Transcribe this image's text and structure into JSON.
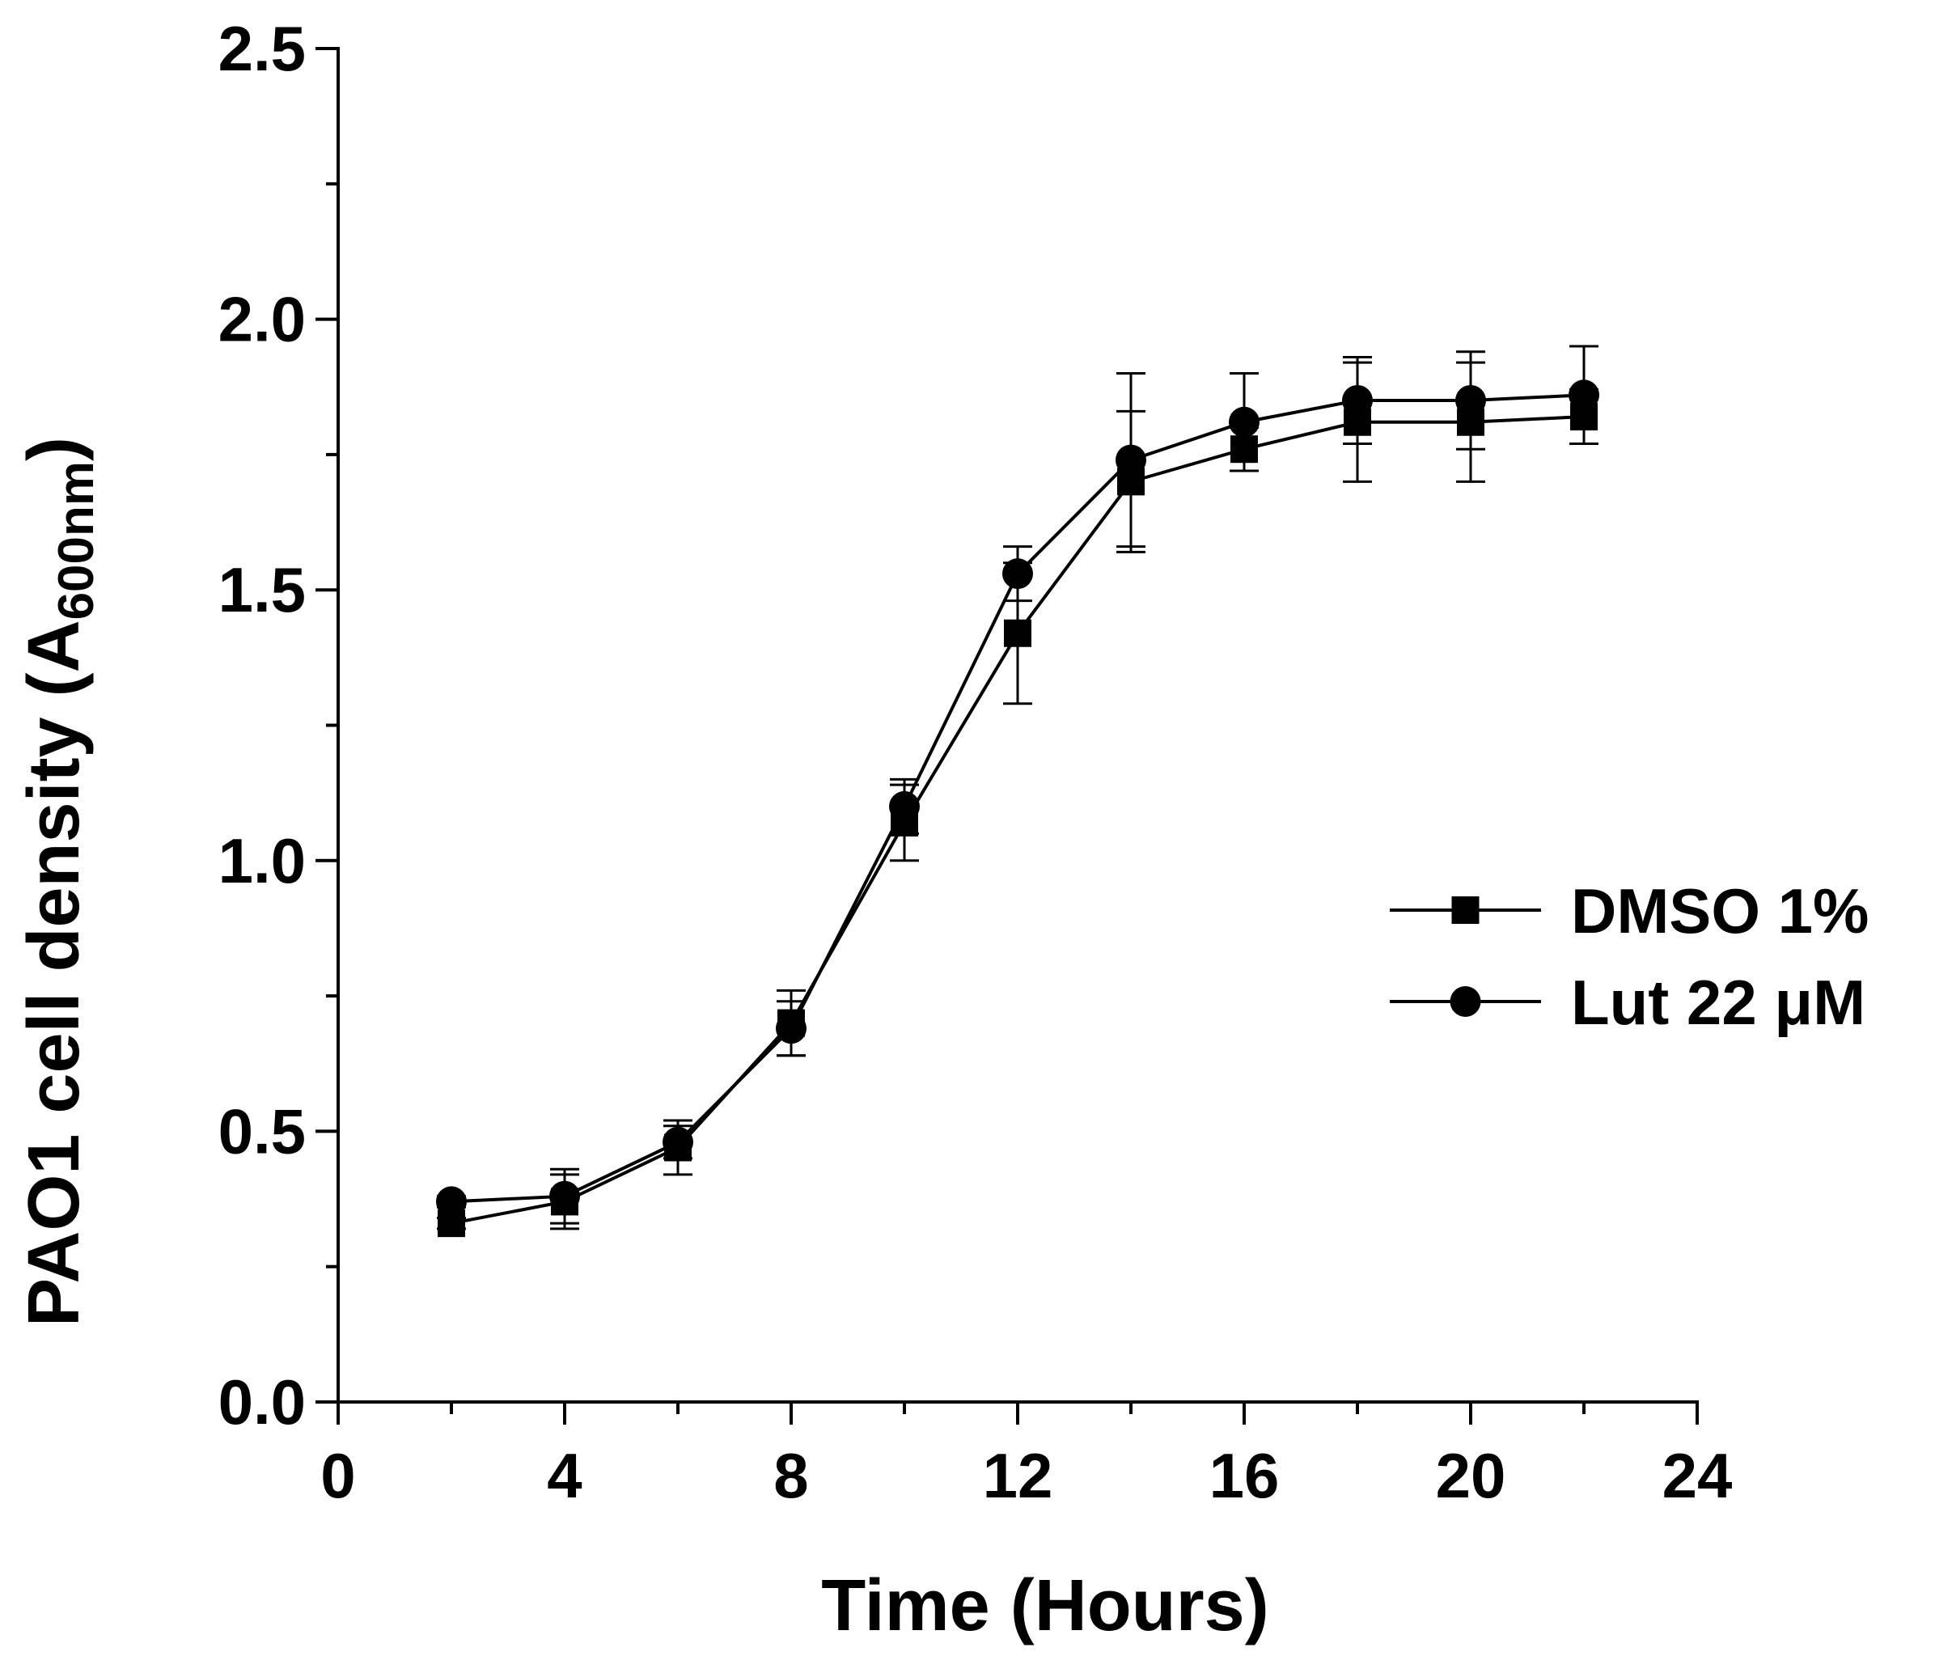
{
  "chart_data": {
    "type": "line",
    "title": "",
    "xlabel": "Time (Hours)",
    "ylabel_main": "PAO1 cell density (A",
    "ylabel_sub": "600nm",
    "ylabel_close": ")",
    "xlim": [
      0,
      24
    ],
    "ylim": [
      0,
      2.5
    ],
    "xticks": [
      0,
      4,
      8,
      12,
      16,
      20,
      24
    ],
    "xtick_labels": [
      "0",
      "4",
      "8",
      "12",
      "16",
      "20",
      "24"
    ],
    "yticks": [
      0,
      0.5,
      1.0,
      1.5,
      2.0,
      2.5
    ],
    "ytick_labels": [
      "0.0",
      "0.5",
      "1.0",
      "1.5",
      "2.0",
      "2.5"
    ],
    "x_minor_step": 2,
    "y_minor_step": 0.25,
    "grid": false,
    "legend_position": "middle-right",
    "series": [
      {
        "name": "DMSO 1%",
        "marker": "square",
        "color": "#000000",
        "x": [
          2,
          4,
          6,
          8,
          10,
          12,
          14,
          16,
          18,
          20,
          22
        ],
        "y": [
          0.33,
          0.37,
          0.47,
          0.7,
          1.07,
          1.42,
          1.7,
          1.76,
          1.81,
          1.81,
          1.82
        ],
        "error": [
          0.01,
          0.05,
          0.05,
          0.06,
          0.07,
          0.13,
          0.13,
          0.04,
          0.11,
          0.11,
          0.05
        ]
      },
      {
        "name": "Lut 22 μM",
        "marker": "circle",
        "color": "#000000",
        "x": [
          2,
          4,
          6,
          8,
          10,
          12,
          14,
          16,
          18,
          20,
          22
        ],
        "y": [
          0.37,
          0.38,
          0.48,
          0.69,
          1.1,
          1.53,
          1.74,
          1.81,
          1.85,
          1.85,
          1.86
        ],
        "error": [
          0.01,
          0.05,
          0.03,
          0.05,
          0.05,
          0.05,
          0.16,
          0.09,
          0.08,
          0.09,
          0.09
        ]
      }
    ]
  }
}
